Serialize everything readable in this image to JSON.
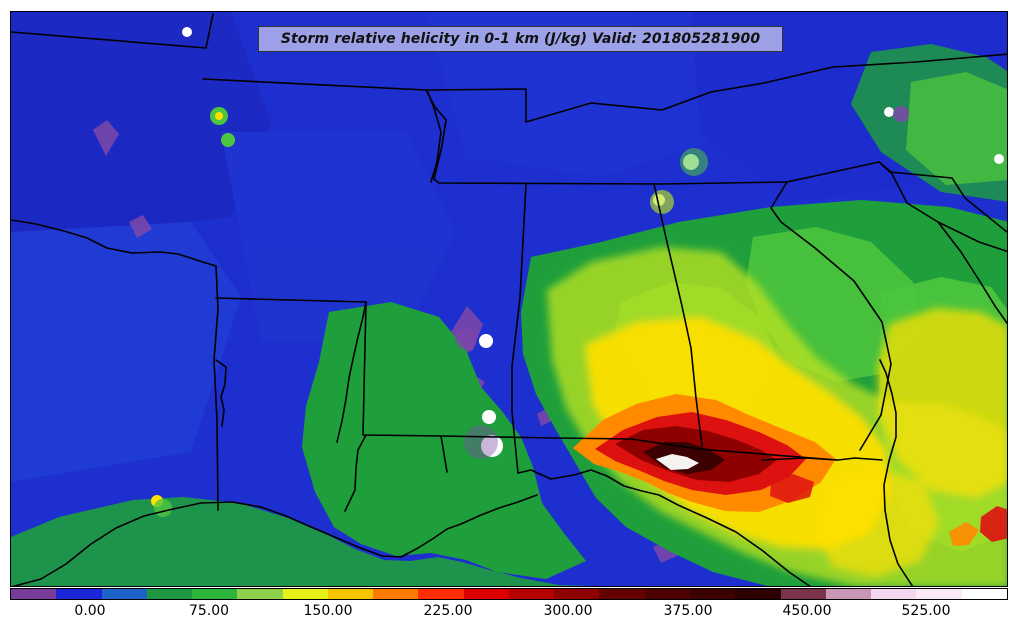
{
  "title": "Storm relative helicity in 0-1 km (J/kg) Valid: 201805281900",
  "colorbar": {
    "ticks": [
      "0.00",
      "75.00",
      "150.00",
      "225.00",
      "300.00",
      "375.00",
      "450.00",
      "525.00"
    ],
    "colors": [
      "#7a3c9a",
      "#1a25d8",
      "#1e63c9",
      "#1d9740",
      "#2bb53a",
      "#8fd14a",
      "#e7f019",
      "#f6c400",
      "#ff7a00",
      "#ff2c00",
      "#dd0000",
      "#b50000",
      "#8f0000",
      "#650000",
      "#4f0000",
      "#3b0000",
      "#2b0000",
      "#7a3449",
      "#c996b5",
      "#f3d7ef",
      "#fbe9f8",
      "#ffffff"
    ]
  },
  "palette": {
    "background_blue": "#1d2fcf",
    "deep_blue": "#1320b6",
    "mid_blue": "#2a5dd1",
    "purple": "#7e48a8",
    "green": "#1f9f3c",
    "light_green": "#4dc53e",
    "yellow_green": "#b8e221",
    "yellow": "#ffe000",
    "orange": "#ff8a00",
    "red": "#de1111",
    "dark_red": "#8f0000",
    "black_red": "#3b0000",
    "white": "#ffffff",
    "border": "#000000"
  }
}
